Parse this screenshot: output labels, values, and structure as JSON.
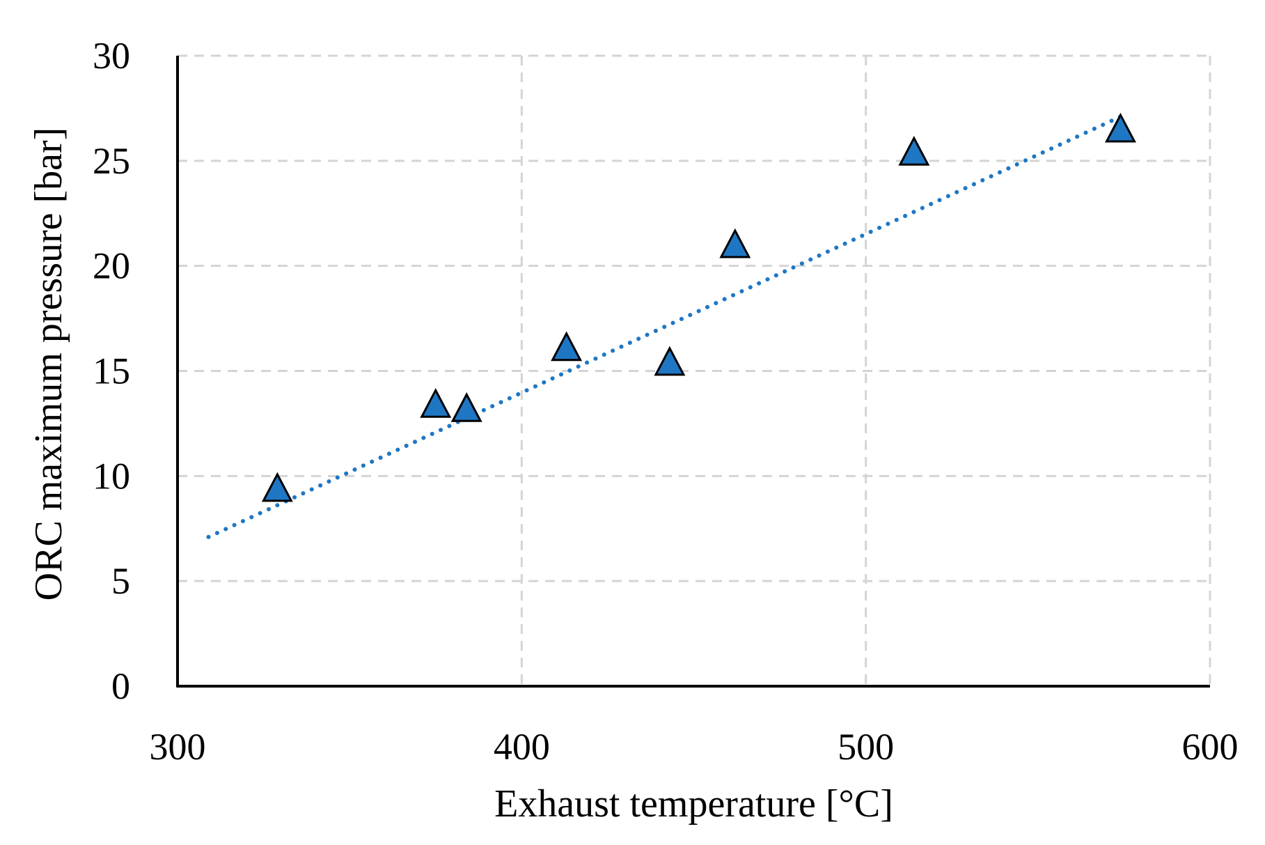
{
  "chart_data": {
    "type": "scatter",
    "title": "",
    "xlabel": "Exhaust temperature [°C]",
    "ylabel": "ORC maximum pressure [bar]",
    "xlim": [
      300,
      600
    ],
    "ylim": [
      0,
      30
    ],
    "xticks": [
      300,
      400,
      500,
      600
    ],
    "yticks": [
      0,
      5,
      10,
      15,
      20,
      25,
      30
    ],
    "xtick_labels": [
      "300",
      "400",
      "500",
      "600"
    ],
    "ytick_labels": [
      "0",
      "5",
      "10",
      "15",
      "20",
      "25",
      "30"
    ],
    "grid": true,
    "series": [
      {
        "name": "ORC maximum pressure",
        "marker": "triangle",
        "color": "#1f77c4",
        "x": [
          329,
          375,
          384,
          413,
          443,
          462,
          514,
          574
        ],
        "y": [
          9.3,
          13.3,
          13.1,
          16.0,
          15.3,
          20.9,
          25.3,
          26.4
        ]
      }
    ],
    "trendline": {
      "type": "linear",
      "style": "dotted",
      "color": "#1f77c4",
      "x": [
        309,
        574
      ],
      "y": [
        7.1,
        27.1
      ]
    }
  }
}
